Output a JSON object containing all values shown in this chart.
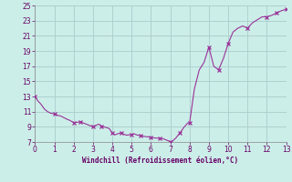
{
  "xlabel": "Windchill (Refroidissement éolien,°C)",
  "bg_color": "#cceee8",
  "grid_color": "#aacccc",
  "line_color": "#993399",
  "marker_color": "#993399",
  "xlim": [
    0,
    13
  ],
  "ylim": [
    7,
    25
  ],
  "yticks": [
    7,
    9,
    11,
    13,
    15,
    17,
    19,
    21,
    23,
    25
  ],
  "xticks": [
    0,
    1,
    2,
    3,
    4,
    5,
    6,
    7,
    8,
    9,
    10,
    11,
    12,
    13
  ],
  "x_pts": [
    0.0,
    0.15,
    0.3,
    0.5,
    0.65,
    0.8,
    1.0,
    1.2,
    1.35,
    1.5,
    1.65,
    1.8,
    2.0,
    2.2,
    2.35,
    2.5,
    2.65,
    2.8,
    2.9,
    3.0,
    3.1,
    3.2,
    3.3,
    3.45,
    3.55,
    3.7,
    3.85,
    4.0,
    4.15,
    4.3,
    4.45,
    4.6,
    4.75,
    4.9,
    5.0,
    5.15,
    5.3,
    5.45,
    5.6,
    5.75,
    5.9,
    6.0,
    6.15,
    6.3,
    6.45,
    6.6,
    6.75,
    6.9,
    7.0,
    7.15,
    7.3,
    7.5,
    7.7,
    7.9,
    8.0,
    8.25,
    8.5,
    8.75,
    9.0,
    9.25,
    9.5,
    9.75,
    10.0,
    10.25,
    10.5,
    10.75,
    11.0,
    11.25,
    11.5,
    11.75,
    12.0,
    12.25,
    12.5,
    12.75,
    13.0
  ],
  "y_pts": [
    13.0,
    12.4,
    12.0,
    11.3,
    11.0,
    10.8,
    10.7,
    10.5,
    10.4,
    10.2,
    10.0,
    9.85,
    9.55,
    9.6,
    9.65,
    9.5,
    9.35,
    9.2,
    9.1,
    9.0,
    9.1,
    9.25,
    9.35,
    9.1,
    9.0,
    8.9,
    8.75,
    8.15,
    7.95,
    8.1,
    8.2,
    8.0,
    7.9,
    7.95,
    8.0,
    8.05,
    7.9,
    7.85,
    7.75,
    7.7,
    7.65,
    7.6,
    7.55,
    7.5,
    7.5,
    7.45,
    7.3,
    7.15,
    7.0,
    7.2,
    7.55,
    8.2,
    8.9,
    9.5,
    9.5,
    14.0,
    16.5,
    17.5,
    19.5,
    17.0,
    16.5,
    18.0,
    20.0,
    21.5,
    22.0,
    22.3,
    22.0,
    22.7,
    23.1,
    23.5,
    23.5,
    23.7,
    24.0,
    24.3,
    24.5
  ],
  "mk_x": [
    0.0,
    1.0,
    2.0,
    2.35,
    3.0,
    3.45,
    4.0,
    4.45,
    5.0,
    5.45,
    6.0,
    6.45,
    7.0,
    7.5,
    8.0,
    9.0,
    9.5,
    10.0,
    11.0,
    12.0,
    12.5,
    13.0
  ],
  "mk_y": [
    13.0,
    10.7,
    9.55,
    9.65,
    9.0,
    9.1,
    8.15,
    8.2,
    8.0,
    7.85,
    7.6,
    7.5,
    7.0,
    8.2,
    9.5,
    19.5,
    16.5,
    20.0,
    22.0,
    23.5,
    24.0,
    24.5
  ]
}
